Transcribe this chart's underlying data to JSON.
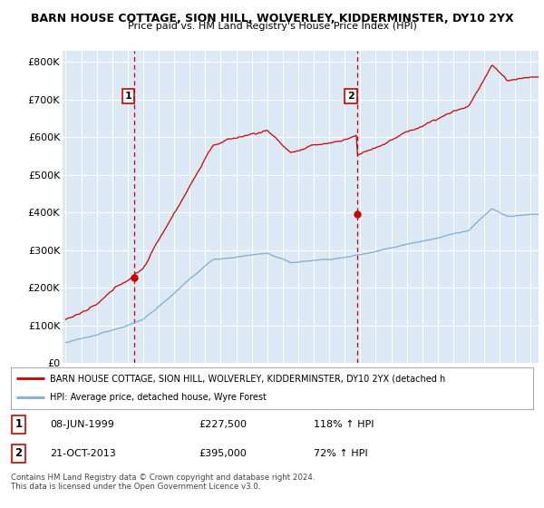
{
  "title": "BARN HOUSE COTTAGE, SION HILL, WOLVERLEY, KIDDERMINSTER, DY10 2YX",
  "subtitle": "Price paid vs. HM Land Registry's House Price Index (HPI)",
  "ylabel_ticks": [
    "£0",
    "£100K",
    "£200K",
    "£300K",
    "£400K",
    "£500K",
    "£600K",
    "£700K",
    "£800K"
  ],
  "ytick_values": [
    0,
    100000,
    200000,
    300000,
    400000,
    500000,
    600000,
    700000,
    800000
  ],
  "ylim": [
    0,
    830000
  ],
  "xlim_start": 1994.8,
  "xlim_end": 2025.5,
  "bg_color": "#dde8f5",
  "grid_color": "#ffffff",
  "sale1_x": 1999.44,
  "sale1_y": 227500,
  "sale2_x": 2013.8,
  "sale2_y": 395000,
  "sale1_date": "08-JUN-1999",
  "sale1_price": "£227,500",
  "sale1_hpi": "118% ↑ HPI",
  "sale2_date": "21-OCT-2013",
  "sale2_price": "£395,000",
  "sale2_hpi": "72% ↑ HPI",
  "legend1_label": "BARN HOUSE COTTAGE, SION HILL, WOLVERLEY, KIDDERMINSTER, DY10 2YX (detached h",
  "legend2_label": "HPI: Average price, detached house, Wyre Forest",
  "footer": "Contains HM Land Registry data © Crown copyright and database right 2024.\nThis data is licensed under the Open Government Licence v3.0.",
  "line1_color": "#cc0000",
  "line2_color": "#7bafd4",
  "dashed_color": "#cc0000",
  "marker_color": "#cc0000"
}
